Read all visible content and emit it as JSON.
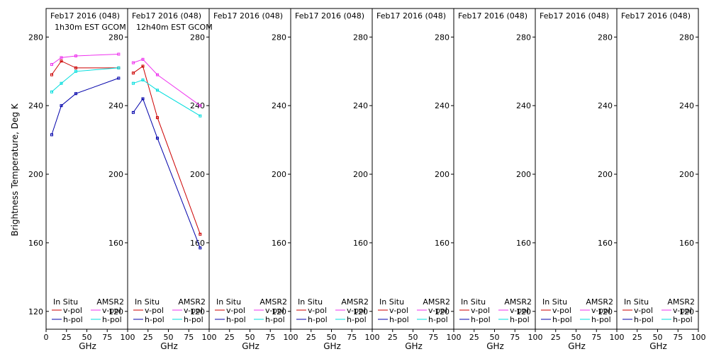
{
  "chart_data": {
    "type": "line",
    "ylabel": "Brightness Temperature, Deg K",
    "xlabel": "GHz",
    "xlim": [
      0,
      100
    ],
    "ylim": [
      110,
      295
    ],
    "yticks": [
      120,
      160,
      200,
      240,
      280
    ],
    "xticks": [
      0,
      25,
      50,
      75,
      100
    ],
    "legend": {
      "placement": "bottom",
      "headers": [
        "In Situ",
        "AMSR2"
      ],
      "entries": [
        "v-pol",
        "h-pol",
        "v-pol",
        "h-pol"
      ]
    },
    "colors": {
      "insitu_v": "#cc0000",
      "insitu_h": "#0000aa",
      "amsr2_v": "#ee33ee",
      "amsr2_h": "#00dddd"
    },
    "panels": [
      {
        "title": "Feb17 2016 (048)",
        "subtitle": "1h30m EST GCOM",
        "series": [
          {
            "key": "amsr2_v",
            "x": [
              6.9,
              18.7,
              36.5,
              89
            ],
            "y": [
              264,
              268,
              269,
              270
            ]
          },
          {
            "key": "insitu_v",
            "x": [
              6.9,
              18.7,
              36.5,
              89
            ],
            "y": [
              258,
              266,
              262,
              262
            ]
          },
          {
            "key": "amsr2_h",
            "x": [
              6.9,
              18.7,
              36.5,
              89
            ],
            "y": [
              248,
              253,
              260,
              262
            ]
          },
          {
            "key": "insitu_h",
            "x": [
              6.9,
              18.7,
              36.5,
              89
            ],
            "y": [
              223,
              240,
              247,
              256
            ]
          }
        ]
      },
      {
        "title": "Feb17 2016 (048)",
        "subtitle": "12h40m EST GCOM",
        "series": [
          {
            "key": "amsr2_v",
            "x": [
              6.9,
              18.7,
              36.5,
              89
            ],
            "y": [
              265,
              267,
              258,
              240
            ]
          },
          {
            "key": "insitu_v",
            "x": [
              6.9,
              18.7,
              36.5,
              89
            ],
            "y": [
              259,
              263,
              233,
              165
            ]
          },
          {
            "key": "amsr2_h",
            "x": [
              6.9,
              18.7,
              36.5,
              89
            ],
            "y": [
              253,
              255,
              249,
              234
            ]
          },
          {
            "key": "insitu_h",
            "x": [
              6.9,
              18.7,
              36.5,
              89
            ],
            "y": [
              236,
              244,
              221,
              157
            ]
          }
        ]
      },
      {
        "title": "Feb17 2016 (048)",
        "subtitle": "",
        "series": []
      },
      {
        "title": "Feb17 2016 (048)",
        "subtitle": "",
        "series": []
      },
      {
        "title": "Feb17 2016 (048)",
        "subtitle": "",
        "series": []
      },
      {
        "title": "Feb17 2016 (048)",
        "subtitle": "",
        "series": []
      },
      {
        "title": "Feb17 2016 (048)",
        "subtitle": "",
        "series": []
      },
      {
        "title": "Feb17 2016 (048)",
        "subtitle": "",
        "series": []
      }
    ]
  }
}
